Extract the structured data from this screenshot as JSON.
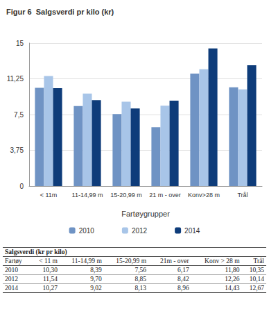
{
  "chart_data": {
    "type": "bar",
    "title": "Figur 6  Salgsverdi pr kilo (kr)",
    "x_label": "Fartøygrupper",
    "categories": [
      "< 11m",
      "11-14,99 m",
      "15-20,99 m",
      "21 m - over",
      "Konv>28 m",
      "Trål"
    ],
    "series": [
      {
        "name": "2010",
        "color": "#6f93c4",
        "values": [
          10.3,
          8.39,
          7.56,
          6.17,
          11.8,
          10.35
        ]
      },
      {
        "name": "2012",
        "color": "#a8c5e8",
        "values": [
          11.54,
          9.7,
          8.85,
          8.42,
          12.26,
          10.14
        ]
      },
      {
        "name": "2014",
        "color": "#0e3c7a",
        "values": [
          10.27,
          9.02,
          8.13,
          8.96,
          14.43,
          12.67
        ]
      }
    ],
    "ylim": [
      0,
      15
    ],
    "yticks": [
      0,
      {
        "value": 3.75,
        "label": "3,75"
      },
      {
        "value": 7.5,
        "label": "7,5"
      },
      {
        "value": 11.25,
        "label": "11,25"
      },
      15
    ],
    "grid": true,
    "legend": "bottom"
  },
  "table": {
    "title": "Salgsverdi (kr pr kilo)",
    "header": [
      "Fartøy",
      "< 11 m",
      "11-14,99 m",
      "15-20,99 m",
      "21m - over",
      "Konv > 28 m",
      "Trål"
    ],
    "rows": [
      [
        "2010",
        "10,30",
        "8,39",
        "7,56",
        "6,17",
        "11,80",
        "10,35"
      ],
      [
        "2012",
        "11,54",
        "9,70",
        "8,85",
        "8,42",
        "12,26",
        "10,14"
      ],
      [
        "2014",
        "10,27",
        "9,02",
        "8,13",
        "8,96",
        "14,43",
        "12,67"
      ]
    ]
  }
}
